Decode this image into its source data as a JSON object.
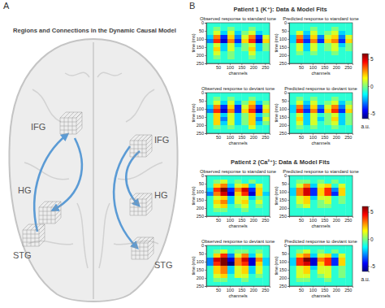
{
  "figure": {
    "panel_a": {
      "label": "A",
      "title": "Regions and Connections in the Dynamic Causal Model",
      "regions": [
        "IFG",
        "HG",
        "STG",
        "IFG",
        "HG",
        "STG"
      ]
    },
    "panel_b_label": "B"
  },
  "chart_data": [
    {
      "type": "heatmap",
      "title": "Patient 1 (K⁺):  Data  &  Model Fits",
      "x_label": "channels",
      "y_label": "time (ms)",
      "xlim": [
        0,
        270
      ],
      "ylim": [
        0,
        250
      ],
      "xticks": [
        50,
        100,
        150,
        200,
        250
      ],
      "yticks": [
        0,
        50,
        100,
        150,
        200,
        250
      ],
      "x_bins": [
        0,
        30,
        60,
        90,
        120,
        150,
        180,
        210,
        240,
        270
      ],
      "y_bins": [
        0,
        25,
        50,
        75,
        100,
        125,
        150,
        175,
        200,
        225,
        250
      ],
      "colorbar": {
        "range": [
          -6,
          6
        ],
        "ticks": [
          5,
          0,
          -5
        ],
        "label": "a.u."
      },
      "subplots": [
        {
          "title": "Observed response to standard tone",
          "cells": [
            [
              -1,
              -1,
              -1,
              -1,
              -1,
              -1,
              -1,
              -1,
              -1
            ],
            [
              -1,
              0,
              -1,
              0,
              -1,
              -1,
              0,
              -1,
              -1
            ],
            [
              -1,
              1,
              -2,
              1,
              -2,
              0,
              1,
              -2,
              -1
            ],
            [
              -2,
              3,
              -4,
              2,
              -3,
              1,
              3,
              -4,
              1
            ],
            [
              -3,
              4,
              -5,
              3,
              -4,
              2,
              4,
              -5,
              2
            ],
            [
              -1,
              1,
              -2,
              1,
              -2,
              0,
              1,
              -2,
              0
            ],
            [
              -1,
              2,
              -2,
              1,
              -1,
              0,
              2,
              -2,
              0
            ],
            [
              -1,
              1,
              -1,
              0,
              -1,
              -1,
              1,
              -1,
              -1
            ],
            [
              -1,
              0,
              -1,
              0,
              -1,
              -1,
              0,
              -1,
              -1
            ],
            [
              -1,
              -1,
              -1,
              -1,
              -1,
              -1,
              -1,
              -1,
              -1
            ]
          ]
        },
        {
          "title": "Predicted response to standard tone",
          "cells": [
            [
              -1,
              -1,
              -1,
              -1,
              -1,
              -1,
              -1,
              -1,
              -1
            ],
            [
              -1,
              -1,
              -1,
              0,
              -1,
              -1,
              0,
              -1,
              -1
            ],
            [
              -1,
              1,
              -2,
              1,
              -1,
              0,
              1,
              -2,
              -1
            ],
            [
              -2,
              3,
              -3,
              2,
              -3,
              1,
              2,
              -3,
              1
            ],
            [
              -2,
              4,
              -4,
              3,
              -4,
              2,
              3,
              -4,
              2
            ],
            [
              -1,
              1,
              -2,
              1,
              -1,
              0,
              1,
              -2,
              0
            ],
            [
              -1,
              1,
              -2,
              1,
              -1,
              0,
              1,
              -1,
              0
            ],
            [
              -1,
              0,
              -1,
              0,
              -1,
              -1,
              0,
              -1,
              -1
            ],
            [
              -1,
              -1,
              -1,
              -1,
              -1,
              -1,
              -1,
              -1,
              -1
            ],
            [
              -1,
              -1,
              -1,
              -1,
              -1,
              -1,
              -1,
              -1,
              -1
            ]
          ]
        },
        {
          "title": "Observed response to deviant tone",
          "cells": [
            [
              -1,
              -1,
              -1,
              -1,
              -1,
              -1,
              -1,
              -1,
              -1
            ],
            [
              -1,
              0,
              -1,
              0,
              -1,
              -1,
              0,
              -1,
              -1
            ],
            [
              -1,
              1,
              -2,
              1,
              -2,
              0,
              2,
              -2,
              0
            ],
            [
              -2,
              3,
              -4,
              2,
              -4,
              1,
              3,
              -4,
              1
            ],
            [
              -3,
              4,
              -5,
              3,
              -4,
              2,
              4,
              -5,
              2
            ],
            [
              -1,
              2,
              -2,
              1,
              -2,
              0,
              2,
              -2,
              0
            ],
            [
              -1,
              2,
              -3,
              1,
              -2,
              0,
              2,
              -3,
              1
            ],
            [
              -1,
              2,
              -2,
              1,
              -2,
              0,
              2,
              -2,
              0
            ],
            [
              -1,
              0,
              -1,
              0,
              -1,
              -1,
              1,
              -1,
              -1
            ],
            [
              -1,
              -1,
              -1,
              -1,
              -1,
              -1,
              -1,
              -1,
              -1
            ]
          ]
        },
        {
          "title": "Predicted response to deviant tone",
          "cells": [
            [
              -1,
              -1,
              -1,
              -1,
              -1,
              -1,
              -1,
              -1,
              -1
            ],
            [
              -1,
              0,
              -1,
              0,
              -1,
              -1,
              0,
              -1,
              -1
            ],
            [
              -1,
              1,
              -2,
              1,
              -1,
              0,
              1,
              -2,
              0
            ],
            [
              -2,
              3,
              -3,
              2,
              -3,
              1,
              3,
              -3,
              1
            ],
            [
              -2,
              4,
              -4,
              3,
              -4,
              2,
              4,
              -4,
              2
            ],
            [
              -1,
              1,
              -2,
              1,
              -1,
              0,
              1,
              -2,
              0
            ],
            [
              -1,
              2,
              -2,
              1,
              -2,
              0,
              2,
              -2,
              0
            ],
            [
              -1,
              1,
              -2,
              1,
              -1,
              0,
              1,
              -2,
              0
            ],
            [
              -1,
              0,
              -1,
              0,
              -1,
              -1,
              0,
              -1,
              -1
            ],
            [
              -1,
              -1,
              -1,
              -1,
              -1,
              -1,
              -1,
              -1,
              -1
            ]
          ]
        }
      ]
    },
    {
      "type": "heatmap",
      "title": "Patient 2 (Ca²⁺):  Data  &  Model Fits",
      "x_label": "channels",
      "y_label": "time (ms)",
      "xlim": [
        0,
        270
      ],
      "ylim": [
        0,
        250
      ],
      "xticks": [
        50,
        100,
        150,
        200,
        250
      ],
      "yticks": [
        0,
        50,
        100,
        150,
        200,
        250
      ],
      "x_bins": [
        0,
        30,
        60,
        90,
        120,
        150,
        180,
        210,
        240,
        270
      ],
      "y_bins": [
        0,
        25,
        50,
        75,
        100,
        125,
        150,
        175,
        200,
        225,
        250
      ],
      "colorbar": {
        "range": [
          -6,
          6
        ],
        "ticks": [
          5,
          0,
          -5
        ],
        "label": "a.u."
      },
      "subplots": [
        {
          "title": "Observed response to standard tone",
          "cells": [
            [
              -1,
              -1,
              -1,
              -1,
              -1,
              -1,
              -1,
              -1,
              -1
            ],
            [
              -1,
              0,
              1,
              -1,
              0,
              -1,
              0,
              -1,
              -1
            ],
            [
              -1,
              2,
              3,
              -2,
              1,
              2,
              -2,
              1,
              -1
            ],
            [
              -2,
              4,
              6,
              -4,
              3,
              5,
              -4,
              2,
              -1
            ],
            [
              -3,
              3,
              5,
              -5,
              2,
              4,
              -5,
              2,
              -2
            ],
            [
              -1,
              1,
              2,
              -2,
              1,
              1,
              -2,
              0,
              -1
            ],
            [
              -1,
              2,
              3,
              -2,
              1,
              2,
              -1,
              1,
              -1
            ],
            [
              -1,
              1,
              2,
              -1,
              0,
              1,
              -1,
              0,
              -1
            ],
            [
              -1,
              0,
              0,
              -1,
              -1,
              0,
              -1,
              -1,
              -1
            ],
            [
              -1,
              -1,
              -1,
              -1,
              -1,
              -1,
              -1,
              -1,
              -1
            ]
          ]
        },
        {
          "title": "Predicted response to standard tone",
          "cells": [
            [
              -1,
              -1,
              -1,
              -1,
              -1,
              -1,
              -1,
              -1,
              -1
            ],
            [
              -1,
              0,
              0,
              -1,
              0,
              -1,
              0,
              -1,
              -1
            ],
            [
              -1,
              1,
              3,
              -2,
              1,
              2,
              -1,
              1,
              -1
            ],
            [
              -2,
              3,
              5,
              -4,
              2,
              4,
              -3,
              2,
              -1
            ],
            [
              -2,
              3,
              5,
              -4,
              2,
              4,
              -4,
              2,
              -1
            ],
            [
              -1,
              1,
              2,
              -2,
              1,
              1,
              -1,
              0,
              -1
            ],
            [
              -1,
              1,
              2,
              -1,
              0,
              1,
              -1,
              0,
              -1
            ],
            [
              -1,
              0,
              1,
              -1,
              0,
              0,
              -1,
              -1,
              -1
            ],
            [
              -1,
              -1,
              -1,
              -1,
              -1,
              -1,
              -1,
              -1,
              -1
            ],
            [
              -1,
              -1,
              -1,
              -1,
              -1,
              -1,
              -1,
              -1,
              -1
            ]
          ]
        },
        {
          "title": "Observed response to deviant tone",
          "cells": [
            [
              -1,
              -1,
              -1,
              -1,
              -1,
              -1,
              -1,
              -1,
              -1
            ],
            [
              -1,
              0,
              1,
              -1,
              0,
              0,
              -1,
              0,
              -1
            ],
            [
              -1,
              2,
              4,
              -3,
              1,
              3,
              -2,
              1,
              -1
            ],
            [
              -3,
              5,
              6,
              -5,
              3,
              5,
              -5,
              3,
              -2
            ],
            [
              -3,
              4,
              6,
              -6,
              3,
              4,
              -5,
              2,
              -2
            ],
            [
              -1,
              2,
              3,
              -2,
              1,
              2,
              -2,
              1,
              -1
            ],
            [
              -1,
              2,
              3,
              -2,
              1,
              2,
              -2,
              1,
              -1
            ],
            [
              -1,
              1,
              2,
              -1,
              1,
              1,
              -1,
              0,
              -1
            ],
            [
              -1,
              0,
              0,
              -1,
              -1,
              0,
              -1,
              -1,
              -1
            ],
            [
              -1,
              -1,
              -1,
              -1,
              -1,
              -1,
              -1,
              -1,
              -1
            ]
          ]
        },
        {
          "title": "Predicted response to deviant tone",
          "cells": [
            [
              -1,
              -1,
              -1,
              -1,
              -1,
              -1,
              -1,
              -1,
              -1
            ],
            [
              -1,
              0,
              1,
              -1,
              0,
              -1,
              0,
              -1,
              -1
            ],
            [
              -1,
              2,
              3,
              -2,
              1,
              2,
              -2,
              1,
              -1
            ],
            [
              -2,
              4,
              6,
              -5,
              3,
              4,
              -4,
              2,
              -1
            ],
            [
              -2,
              4,
              5,
              -5,
              2,
              4,
              -4,
              2,
              -1
            ],
            [
              -1,
              1,
              2,
              -2,
              1,
              1,
              -1,
              0,
              -1
            ],
            [
              -1,
              1,
              2,
              -1,
              1,
              1,
              -1,
              0,
              -1
            ],
            [
              -1,
              1,
              1,
              -1,
              0,
              1,
              -1,
              0,
              -1
            ],
            [
              -1,
              0,
              0,
              -1,
              -1,
              0,
              -1,
              -1,
              -1
            ],
            [
              -1,
              -1,
              -1,
              -1,
              -1,
              -1,
              -1,
              -1,
              -1
            ]
          ]
        }
      ]
    }
  ]
}
